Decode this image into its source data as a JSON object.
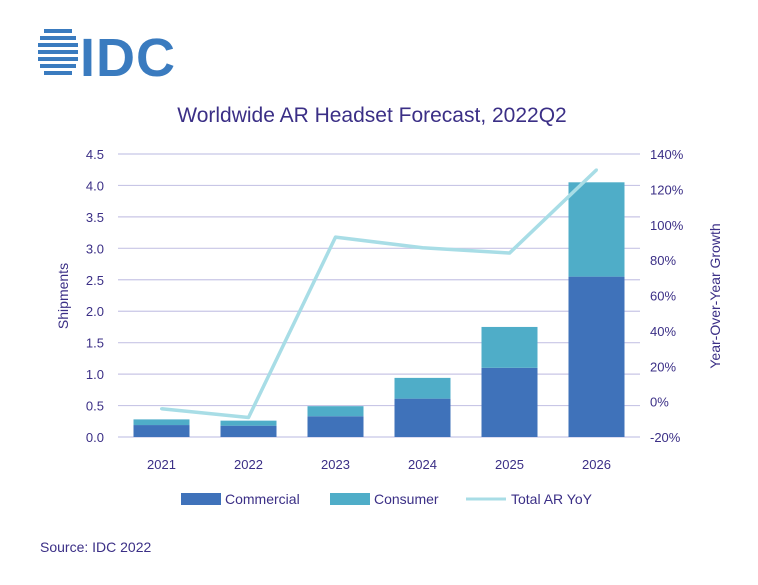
{
  "logo": {
    "text": "IDC",
    "color": "#3a7bbf"
  },
  "source": "Source: IDC 2022",
  "colors": {
    "commercial": "#3f72ba",
    "consumer": "#4fadc8",
    "yoy": "#a8dde6",
    "text": "#3b2f86",
    "grid": "#c8c6e6"
  },
  "chart_data": {
    "type": "bar",
    "stacked": true,
    "title": "Worldwide AR Headset Forecast, 2022Q2",
    "categories": [
      "2021",
      "2022",
      "2023",
      "2024",
      "2025",
      "2026"
    ],
    "ylabel": "Shipments",
    "y2label": "Year-Over-Year Growth",
    "ylim": [
      0,
      4.5
    ],
    "y_ticks": [
      "0.0",
      "0.5",
      "1.0",
      "1.5",
      "2.0",
      "2.5",
      "3.0",
      "3.5",
      "4.0",
      "4.5"
    ],
    "y2lim": [
      -20,
      140
    ],
    "y2_ticks": [
      "-20%",
      "0%",
      "20%",
      "40%",
      "60%",
      "80%",
      "100%",
      "120%",
      "140%"
    ],
    "series": [
      {
        "name": "Commercial",
        "values": [
          0.19,
          0.18,
          0.33,
          0.61,
          1.1,
          2.55
        ]
      },
      {
        "name": "Consumer",
        "values": [
          0.09,
          0.08,
          0.16,
          0.33,
          0.65,
          1.5
        ]
      }
    ],
    "line_series": {
      "name": "Total AR YoY",
      "axis": "secondary",
      "values": [
        -4,
        -9,
        93,
        87,
        84,
        131
      ]
    },
    "grid": true,
    "legend_position": "bottom"
  }
}
